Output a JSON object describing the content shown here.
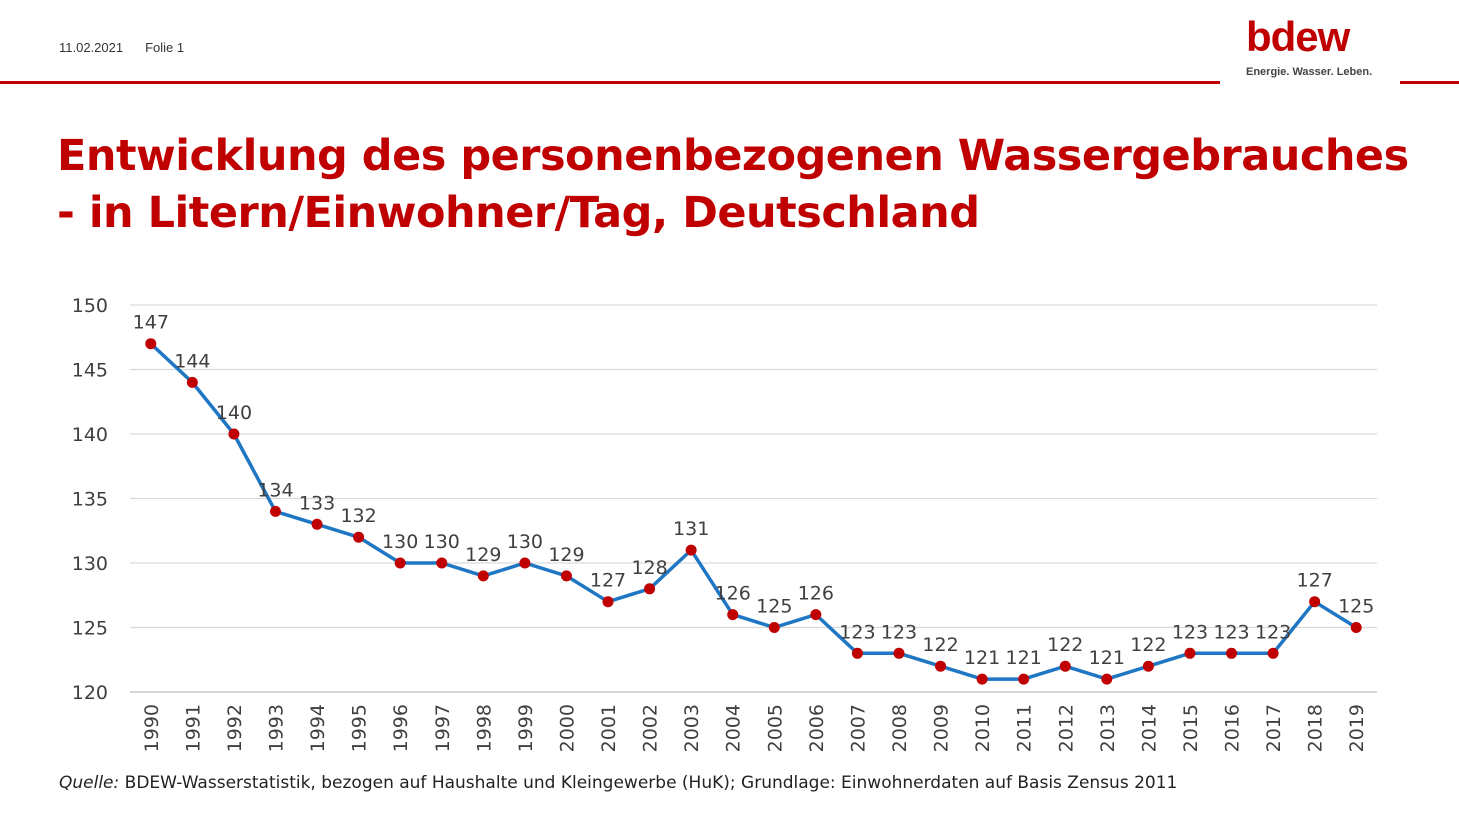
{
  "header": {
    "date": "11.02.2021",
    "slide": "Folie 1"
  },
  "logo": {
    "word": "bdew",
    "claim": "Energie. Wasser. Leben."
  },
  "title": {
    "line1": "Entwicklung des personenbezogenen Wassergebrauches",
    "line2": "- in Litern/Einwohner/Tag, Deutschland"
  },
  "source": {
    "label": "Quelle:",
    "text": " BDEW-Wasserstatistik, bezogen auf Haushalte und Kleingewerbe (HuK); Grundlage: Einwohnerdaten auf Basis Zensus 2011"
  },
  "colors": {
    "brand": "#c00000",
    "line": "#1f77c4",
    "marker": "#c00000",
    "grid": "#d9d9d9"
  },
  "chart_data": {
    "type": "line",
    "categories": [
      "1990",
      "1991",
      "1992",
      "1993",
      "1994",
      "1995",
      "1996",
      "1997",
      "1998",
      "1999",
      "2000",
      "2001",
      "2002",
      "2003",
      "2004",
      "2005",
      "2006",
      "2007",
      "2008",
      "2009",
      "2010",
      "2011",
      "2012",
      "2013",
      "2014",
      "2015",
      "2016",
      "2017",
      "2018",
      "2019"
    ],
    "values": [
      147,
      144,
      140,
      134,
      133,
      132,
      130,
      130,
      129,
      130,
      129,
      127,
      128,
      131,
      126,
      125,
      126,
      123,
      123,
      122,
      121,
      121,
      122,
      121,
      122,
      123,
      123,
      123,
      127,
      125
    ],
    "yticks": [
      120,
      125,
      130,
      135,
      140,
      145,
      150
    ],
    "ylim": [
      120,
      150
    ],
    "grid": true,
    "legend": "none",
    "data_labels": true
  }
}
